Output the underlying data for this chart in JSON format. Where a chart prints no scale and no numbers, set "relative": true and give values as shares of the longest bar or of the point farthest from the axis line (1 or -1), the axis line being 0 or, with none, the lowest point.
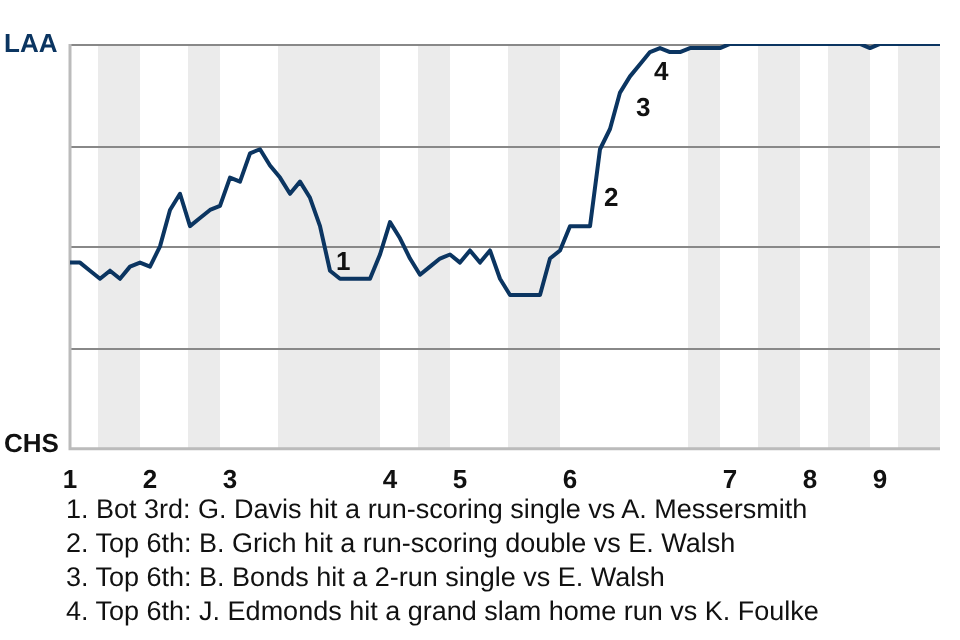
{
  "chart_data": {
    "type": "line",
    "relative": true,
    "grid": "y",
    "legend": false,
    "marker": "none",
    "line_style": "solid",
    "categories": [
      "1",
      null,
      null,
      null,
      null,
      null,
      null,
      null,
      "2",
      null,
      null,
      null,
      null,
      null,
      null,
      null,
      "3",
      null,
      null,
      null,
      null,
      null,
      null,
      null,
      null,
      null,
      null,
      null,
      null,
      null,
      null,
      null,
      "4",
      null,
      null,
      null,
      null,
      null,
      null,
      "5",
      null,
      null,
      null,
      null,
      null,
      null,
      null,
      null,
      null,
      null,
      "6",
      null,
      null,
      null,
      null,
      null,
      null,
      null,
      null,
      null,
      null,
      null,
      null,
      null,
      null,
      null,
      "7",
      null,
      null,
      null,
      null,
      null,
      null,
      null,
      "8",
      null,
      null,
      null,
      null,
      null,
      null,
      "9",
      null,
      null,
      null,
      null,
      null,
      null
    ],
    "series": [
      {
        "color": "#0b3561",
        "values": [
          0.46,
          0.46,
          0.44,
          0.42,
          0.44,
          0.42,
          0.45,
          0.46,
          0.45,
          0.5,
          0.59,
          0.63,
          0.55,
          0.57,
          0.59,
          0.6,
          0.67,
          0.66,
          0.73,
          0.74,
          0.7,
          0.67,
          0.63,
          0.66,
          0.62,
          0.55,
          0.44,
          0.42,
          0.42,
          0.42,
          0.42,
          0.48,
          0.56,
          0.52,
          0.47,
          0.43,
          0.45,
          0.47,
          0.48,
          0.46,
          0.49,
          0.46,
          0.49,
          0.42,
          0.38,
          0.38,
          0.38,
          0.38,
          0.47,
          0.49,
          0.55,
          0.55,
          0.55,
          0.74,
          0.79,
          0.88,
          0.92,
          0.95,
          0.98,
          0.99,
          0.98,
          0.98,
          0.99,
          0.99,
          0.99,
          0.99,
          1,
          1,
          1,
          1,
          1,
          1,
          1,
          1,
          1,
          1,
          1,
          1,
          1,
          1,
          0.99,
          1,
          1,
          1,
          1,
          1,
          1,
          1
        ]
      }
    ],
    "annotations": [
      "LAA",
      "CHS",
      "1",
      "2",
      "3",
      "4",
      "1. Bot 3rd: G. Davis hit a run-scoring single vs A. Messersmith",
      "2. Top 6th: B. Grich hit a run-scoring double vs E. Walsh",
      "3. Top 6th: B. Bonds hit a 2-run single vs E. Walsh",
      "4. Top 6th: J. Edmonds hit a grand slam home run vs K. Foulke"
    ]
  }
}
